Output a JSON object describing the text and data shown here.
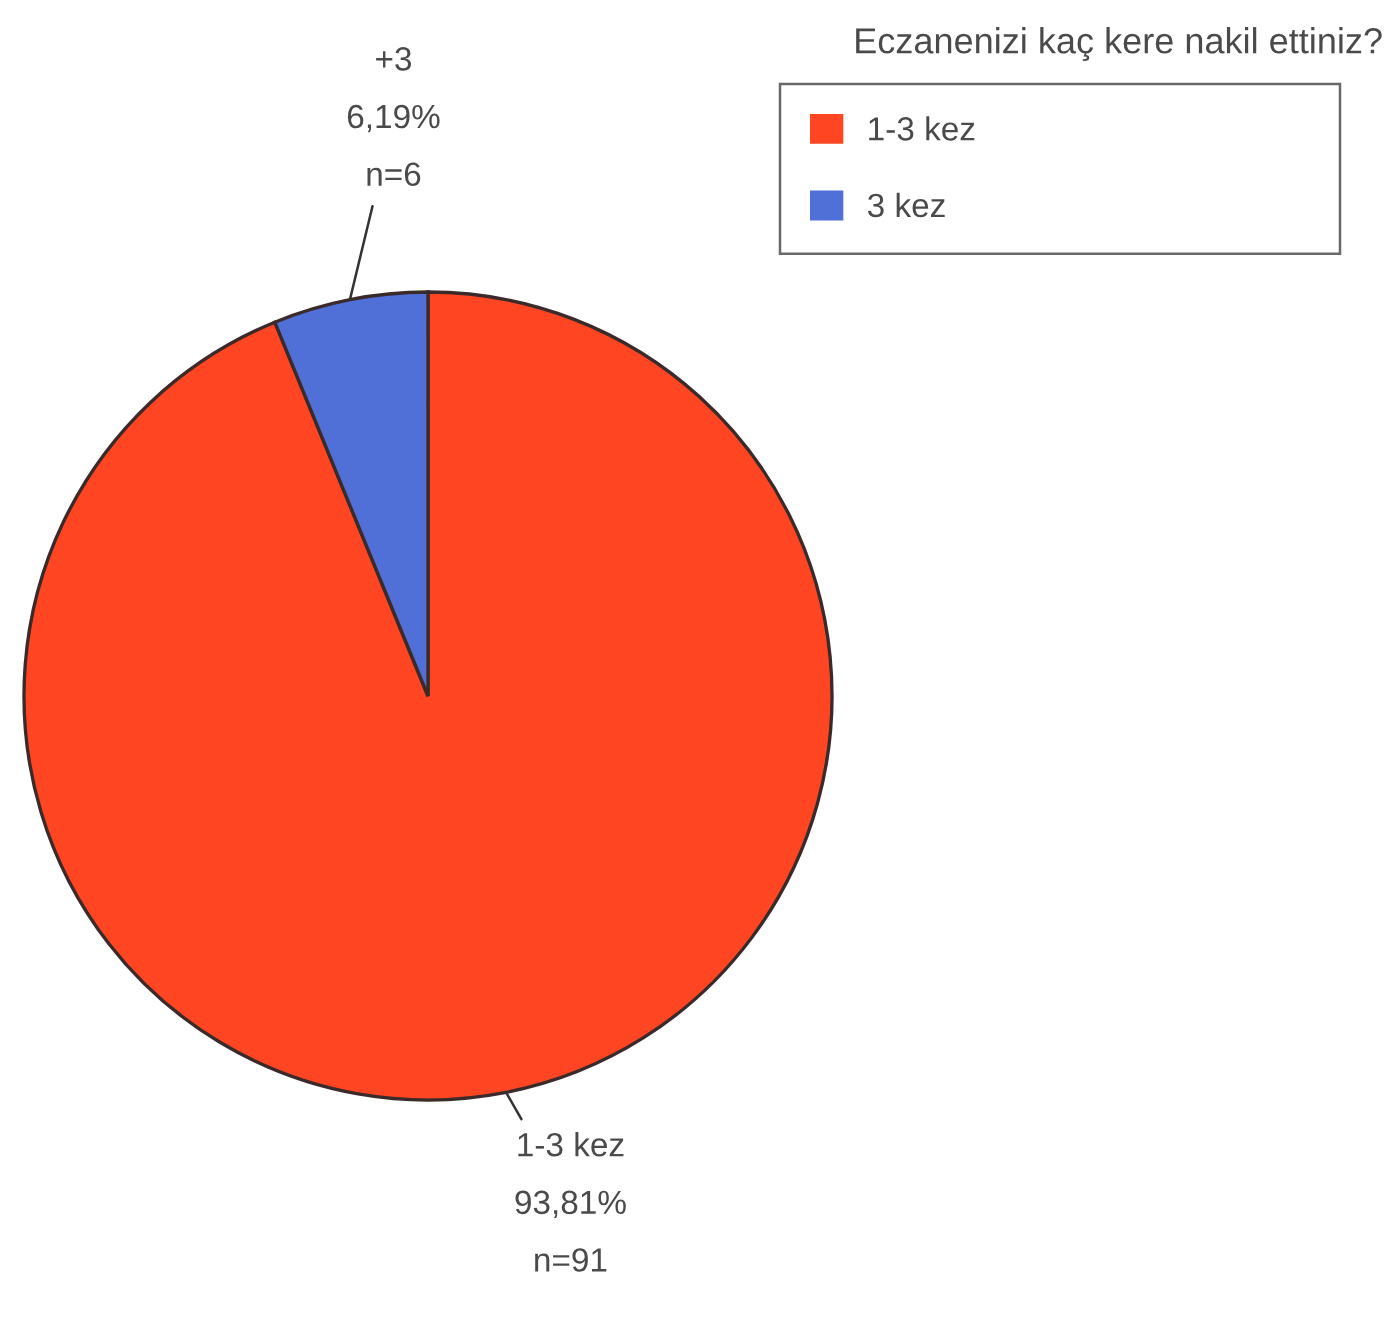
{
  "chart_data": {
    "type": "pie",
    "title": "Eczanenizi kaç kere nakil ettiniz?",
    "categories": [
      "1-3 kez",
      "3 kez"
    ],
    "values": [
      93.81,
      6.19
    ],
    "colors": [
      "#ff4522",
      "#5070d8"
    ],
    "value_labels": [
      "1-3 kez\n93,81%\nn=91",
      "+3\n6,19%\nn=6"
    ],
    "legend": "top right"
  }
}
